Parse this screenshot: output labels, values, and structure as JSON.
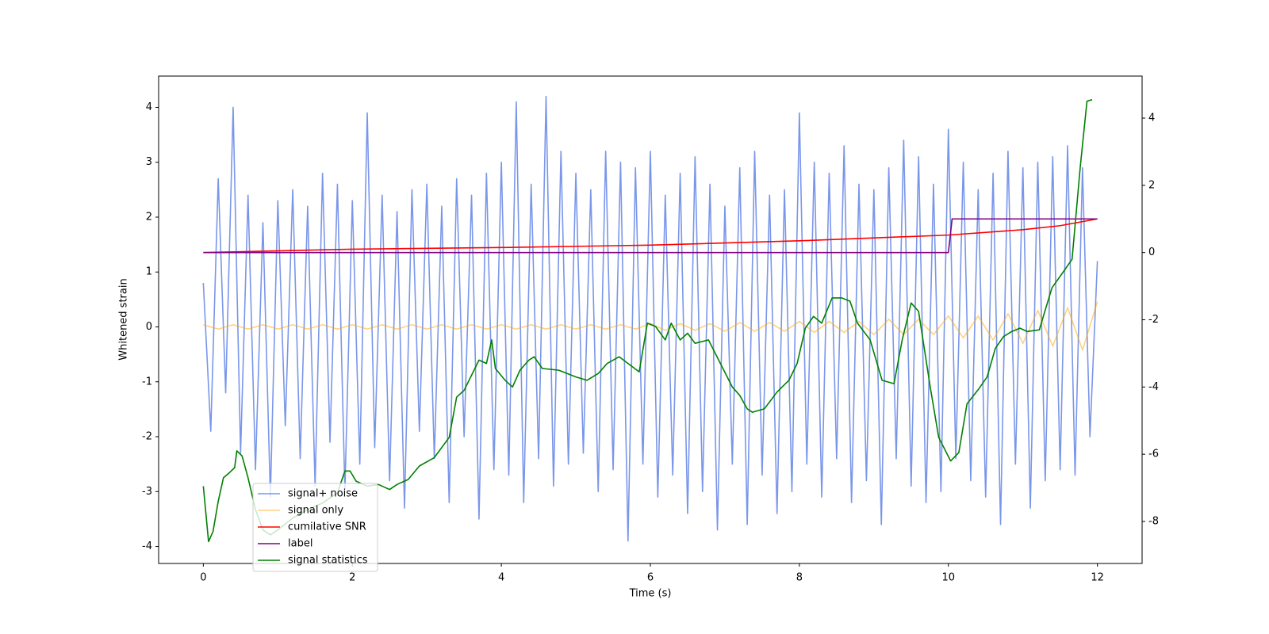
{
  "chart_data": {
    "type": "line",
    "xlabel": "Time (s)",
    "ylabel": "Whitened strain",
    "xlim": [
      -0.6,
      12.6
    ],
    "xticks": [
      0,
      2,
      4,
      6,
      8,
      10,
      12
    ],
    "ylim": [
      -4.31,
      4.57
    ],
    "yticks": [
      -4,
      -3,
      -2,
      -1,
      0,
      1,
      2,
      3,
      4
    ],
    "y2lim": [
      -9.25,
      5.25
    ],
    "y2ticks": [
      -8,
      -6,
      -4,
      -2,
      0,
      2,
      4
    ],
    "legend": "lower left",
    "series": [
      {
        "name": "signal+ noise",
        "color": "#4169e1",
        "alpha": 0.7,
        "axis": "y",
        "x": [
          0,
          0.1,
          0.2,
          0.3,
          0.4,
          0.5,
          0.6,
          0.7,
          0.8,
          0.9,
          1,
          1.1,
          1.2,
          1.3,
          1.4,
          1.5,
          1.6,
          1.7,
          1.8,
          1.9,
          2,
          2.1,
          2.2,
          2.3,
          2.4,
          2.5,
          2.6,
          2.7,
          2.8,
          2.9,
          3,
          3.1,
          3.2,
          3.3,
          3.4,
          3.5,
          3.6,
          3.7,
          3.8,
          3.9,
          4,
          4.1,
          4.2,
          4.3,
          4.4,
          4.5,
          4.6,
          4.7,
          4.8,
          4.9,
          5,
          5.1,
          5.2,
          5.3,
          5.4,
          5.5,
          5.6,
          5.7,
          5.8,
          5.9,
          6,
          6.1,
          6.2,
          6.3,
          6.4,
          6.5,
          6.6,
          6.7,
          6.8,
          6.9,
          7,
          7.1,
          7.2,
          7.3,
          7.4,
          7.5,
          7.6,
          7.7,
          7.8,
          7.9,
          8,
          8.1,
          8.2,
          8.3,
          8.4,
          8.5,
          8.6,
          8.7,
          8.8,
          8.9,
          9,
          9.1,
          9.2,
          9.3,
          9.4,
          9.5,
          9.6,
          9.7,
          9.8,
          9.9,
          10,
          10.1,
          10.2,
          10.3,
          10.4,
          10.5,
          10.6,
          10.7,
          10.8,
          10.9,
          11,
          11.1,
          11.2,
          11.3,
          11.4,
          11.5,
          11.6,
          11.7,
          11.8,
          11.9,
          12
        ],
        "values": [
          0.8,
          -1.9,
          2.7,
          -1.2,
          4.0,
          -2.3,
          2.4,
          -2.6,
          1.9,
          -3.1,
          2.3,
          -1.8,
          2.5,
          -2.4,
          2.2,
          -2.9,
          2.8,
          -2.1,
          2.6,
          -3.0,
          2.3,
          -2.5,
          3.9,
          -2.2,
          2.4,
          -2.8,
          2.1,
          -3.3,
          2.5,
          -1.9,
          2.6,
          -2.4,
          2.2,
          -3.2,
          2.7,
          -2.0,
          2.4,
          -3.5,
          2.8,
          -2.6,
          3.0,
          -2.7,
          4.1,
          -3.2,
          2.6,
          -2.4,
          4.2,
          -2.9,
          3.2,
          -2.5,
          2.8,
          -2.3,
          2.5,
          -3.0,
          3.2,
          -2.6,
          3.0,
          -3.9,
          2.9,
          -2.5,
          3.2,
          -3.1,
          2.4,
          -2.7,
          2.8,
          -3.4,
          3.1,
          -3.0,
          2.6,
          -3.7,
          2.2,
          -2.5,
          2.9,
          -3.6,
          3.2,
          -2.7,
          2.4,
          -3.4,
          2.5,
          -3.0,
          3.9,
          -2.5,
          3.0,
          -3.1,
          2.8,
          -2.4,
          3.3,
          -3.2,
          2.6,
          -2.8,
          2.5,
          -3.6,
          2.9,
          -2.4,
          3.4,
          -2.9,
          3.1,
          -3.2,
          2.6,
          -3.0,
          3.6,
          -2.4,
          3.0,
          -2.8,
          2.5,
          -3.1,
          2.8,
          -3.6,
          3.2,
          -2.5,
          2.9,
          -3.3,
          3.0,
          -2.8,
          3.1,
          -2.6,
          3.3,
          -2.7,
          2.9,
          -2.0,
          1.2
        ]
      },
      {
        "name": "signal only",
        "color": "#ffa500",
        "alpha": 0.5,
        "axis": "y",
        "x": [
          0,
          0.2,
          0.4,
          0.6,
          0.8,
          1,
          1.2,
          1.4,
          1.6,
          1.8,
          2,
          2.2,
          2.4,
          2.6,
          2.8,
          3,
          3.2,
          3.4,
          3.6,
          3.8,
          4,
          4.2,
          4.4,
          4.6,
          4.8,
          5,
          5.2,
          5.4,
          5.6,
          5.8,
          6,
          6.2,
          6.4,
          6.6,
          6.8,
          7,
          7.2,
          7.4,
          7.6,
          7.8,
          8,
          8.2,
          8.4,
          8.6,
          8.8,
          9,
          9.2,
          9.4,
          9.6,
          9.8,
          10,
          10.2,
          10.4,
          10.6,
          10.8,
          11,
          11.2,
          11.4,
          11.6,
          11.8,
          12
        ],
        "values": [
          0.04,
          -0.04,
          0.04,
          -0.04,
          0.04,
          -0.04,
          0.04,
          -0.04,
          0.04,
          -0.04,
          0.04,
          -0.04,
          0.04,
          -0.04,
          0.04,
          -0.04,
          0.04,
          -0.04,
          0.04,
          -0.04,
          0.04,
          -0.04,
          0.04,
          -0.04,
          0.04,
          -0.04,
          0.04,
          -0.04,
          0.04,
          -0.04,
          0.06,
          -0.06,
          0.06,
          -0.06,
          0.06,
          -0.08,
          0.08,
          -0.08,
          0.08,
          -0.08,
          0.1,
          -0.1,
          0.1,
          -0.1,
          0.1,
          -0.14,
          0.14,
          -0.14,
          0.14,
          -0.14,
          0.2,
          -0.2,
          0.2,
          -0.24,
          0.24,
          -0.3,
          0.3,
          -0.35,
          0.35,
          -0.42,
          0.46
        ]
      },
      {
        "name": "cumilative SNR",
        "color": "#ff0000",
        "alpha": 1,
        "axis": "y2",
        "x": [
          0,
          2,
          4,
          6,
          8,
          10,
          11,
          11.5,
          12
        ],
        "values": [
          0,
          0.1,
          0.15,
          0.22,
          0.35,
          0.52,
          0.68,
          0.8,
          1.0
        ]
      },
      {
        "name": "label",
        "color": "#800080",
        "alpha": 1,
        "axis": "y2",
        "x": [
          0,
          10,
          10.05,
          12
        ],
        "values": [
          0,
          0,
          1,
          1
        ]
      },
      {
        "name": "signal statistics",
        "color": "#008000",
        "alpha": 1,
        "axis": "y2",
        "x": [
          0,
          0.07,
          0.13,
          0.2,
          0.27,
          0.35,
          0.42,
          0.45,
          0.52,
          0.6,
          0.7,
          0.8,
          0.9,
          1.0,
          1.2,
          1.4,
          1.6,
          1.8,
          1.9,
          1.97,
          2.05,
          2.2,
          2.35,
          2.5,
          2.6,
          2.75,
          2.9,
          3.1,
          3.3,
          3.4,
          3.5,
          3.7,
          3.8,
          3.87,
          3.92,
          4.05,
          4.15,
          4.25,
          4.37,
          4.44,
          4.55,
          4.77,
          5.0,
          5.15,
          5.3,
          5.42,
          5.58,
          5.7,
          5.85,
          5.96,
          6.07,
          6.2,
          6.28,
          6.4,
          6.5,
          6.6,
          6.78,
          6.94,
          7.1,
          7.2,
          7.3,
          7.37,
          7.53,
          7.7,
          7.86,
          7.97,
          8.08,
          8.19,
          8.3,
          8.44,
          8.57,
          8.68,
          8.78,
          8.95,
          9.11,
          9.27,
          9.38,
          9.5,
          9.6,
          9.76,
          9.87,
          10.03,
          10.14,
          10.25,
          10.41,
          10.52,
          10.63,
          10.74,
          10.85,
          10.96,
          11.06,
          11.22,
          11.39,
          11.55,
          11.66,
          11.77,
          11.86,
          11.93
        ],
        "values": [
          -6.95,
          -8.6,
          -8.3,
          -7.4,
          -6.7,
          -6.55,
          -6.4,
          -5.9,
          -6.05,
          -6.7,
          -7.65,
          -8.25,
          -8.4,
          -8.25,
          -7.9,
          -7.65,
          -7.45,
          -7.15,
          -6.5,
          -6.5,
          -6.8,
          -6.95,
          -6.9,
          -7.05,
          -6.9,
          -6.75,
          -6.35,
          -6.1,
          -5.5,
          -4.3,
          -4.1,
          -3.2,
          -3.3,
          -2.6,
          -3.45,
          -3.8,
          -4.0,
          -3.5,
          -3.2,
          -3.1,
          -3.45,
          -3.5,
          -3.7,
          -3.8,
          -3.6,
          -3.3,
          -3.1,
          -3.3,
          -3.55,
          -2.1,
          -2.2,
          -2.6,
          -2.1,
          -2.6,
          -2.4,
          -2.7,
          -2.6,
          -3.3,
          -4.0,
          -4.25,
          -4.65,
          -4.75,
          -4.65,
          -4.15,
          -3.8,
          -3.3,
          -2.25,
          -1.9,
          -2.1,
          -1.35,
          -1.35,
          -1.45,
          -2.1,
          -2.6,
          -3.8,
          -3.9,
          -2.6,
          -1.5,
          -1.75,
          -4.05,
          -5.5,
          -6.2,
          -5.95,
          -4.5,
          -4.05,
          -3.7,
          -2.85,
          -2.5,
          -2.35,
          -2.25,
          -2.35,
          -2.3,
          -1.05,
          -0.55,
          -0.2,
          2.55,
          4.5,
          4.55
        ]
      }
    ]
  }
}
